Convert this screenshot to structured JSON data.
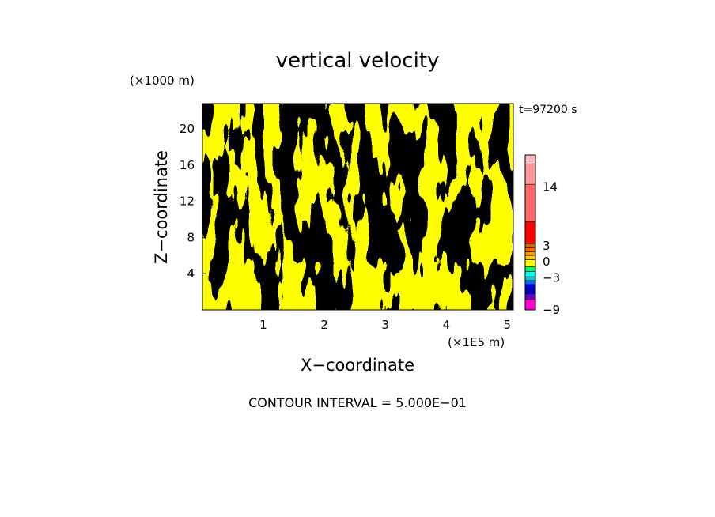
{
  "chart_data": {
    "type": "heatmap",
    "title": "vertical velocity",
    "xlabel": "X−coordinate",
    "ylabel": "Z−coordinate",
    "x_unit": "(×1E5 m)",
    "y_unit": "(×1000 m)",
    "time_label": "t=97200 s",
    "footer": "CONTOUR INTERVAL = 5.000E−01",
    "xlim": [
      0,
      5.1
    ],
    "ylim": [
      0,
      22.8
    ],
    "x_ticks": [
      {
        "value": 1,
        "label": "1"
      },
      {
        "value": 2,
        "label": "2"
      },
      {
        "value": 3,
        "label": "3"
      },
      {
        "value": 4,
        "label": "4"
      },
      {
        "value": 5,
        "label": "5"
      }
    ],
    "y_ticks": [
      {
        "value": 4,
        "label": "4"
      },
      {
        "value": 8,
        "label": "8"
      },
      {
        "value": 12,
        "label": "12"
      },
      {
        "value": 16,
        "label": "16"
      },
      {
        "value": 20,
        "label": "20"
      }
    ],
    "field_colors": {
      "negative": "#00ff66",
      "positive": "#ffff00"
    },
    "colorbar": {
      "min": -9,
      "max": 20,
      "bands": [
        {
          "from": -9,
          "to": -7,
          "color": "#ff00cc"
        },
        {
          "from": -7,
          "to": -6,
          "color": "#6600cc"
        },
        {
          "from": -6,
          "to": -5,
          "color": "#0000cc"
        },
        {
          "from": -5,
          "to": -4.25,
          "color": "#0000ff"
        },
        {
          "from": -4.25,
          "to": -3.5,
          "color": "#0066ff"
        },
        {
          "from": -3.5,
          "to": -2.8,
          "color": "#00cccc"
        },
        {
          "from": -2.8,
          "to": -1.8,
          "color": "#00ffff"
        },
        {
          "from": -1.8,
          "to": -0.9,
          "color": "#00ff66"
        },
        {
          "from": -0.9,
          "to": 0.4,
          "color": "#ffff00"
        },
        {
          "from": 0.4,
          "to": 1.2,
          "color": "#ffcc00"
        },
        {
          "from": 1.2,
          "to": 1.9,
          "color": "#ff9900"
        },
        {
          "from": 1.9,
          "to": 2.6,
          "color": "#ff6600"
        },
        {
          "from": 2.6,
          "to": 3.4,
          "color": "#cc6600"
        },
        {
          "from": 3.4,
          "to": 7.5,
          "color": "#ff0000"
        },
        {
          "from": 7.5,
          "to": 14.5,
          "color": "#ff6666"
        },
        {
          "from": 14.5,
          "to": 18.3,
          "color": "#ff9999"
        },
        {
          "from": 18.3,
          "to": 20,
          "color": "#ffbbbb"
        }
      ],
      "ticks": [
        {
          "value": 14,
          "label": "14"
        },
        {
          "value": 3,
          "label": "3"
        },
        {
          "value": 0,
          "label": "0"
        },
        {
          "value": -3,
          "label": "−3"
        },
        {
          "value": -9,
          "label": "−9"
        }
      ]
    }
  }
}
